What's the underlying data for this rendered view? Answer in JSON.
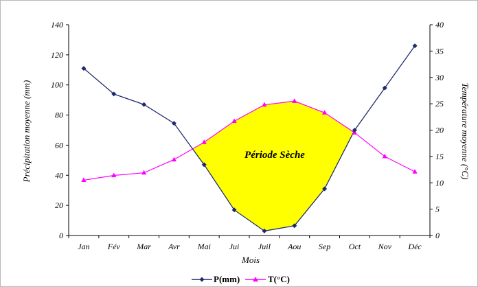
{
  "chart_data": {
    "type": "line",
    "categories": [
      "Jan",
      "Fév",
      "Mar",
      "Avr",
      "Mai",
      "Jui",
      "Juil",
      "Aou",
      "Sep",
      "Oct",
      "Nov",
      "Déc"
    ],
    "series": [
      {
        "name": "P(mm)",
        "axis": "left",
        "color": "#1f2a6b",
        "marker": "diamond",
        "values": [
          111,
          94,
          87,
          74.5,
          47,
          17,
          3,
          6.5,
          31,
          70,
          98,
          126
        ]
      },
      {
        "name": "T(°C)",
        "axis": "right",
        "color": "#ff00ff",
        "marker": "triangle",
        "values": [
          10.5,
          11.4,
          11.9,
          14.4,
          17.7,
          21.7,
          24.8,
          25.5,
          23.3,
          19.5,
          15,
          12.1
        ]
      }
    ],
    "xlabel": "Mois",
    "ylabel": "Précipitation moyenne (mm)",
    "y2label": "Température moyenne (°C)",
    "ylim": [
      0,
      140
    ],
    "y2lim": [
      0,
      40
    ],
    "yticks": [
      "0",
      "20",
      "40",
      "60",
      "80",
      "100",
      "120",
      "140"
    ],
    "y2ticks": [
      "0",
      "5",
      "10",
      "15",
      "20",
      "25",
      "30",
      "35",
      "40"
    ],
    "annotation": "Période Sèche",
    "dry_fill_color": "#ffff00",
    "grid": false,
    "legend_position": "bottom"
  }
}
